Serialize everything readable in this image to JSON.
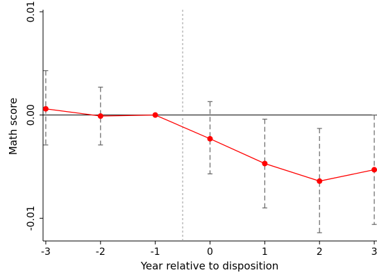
{
  "chart_data": {
    "type": "line",
    "title": "",
    "xlabel": "Year relative to disposition",
    "ylabel": "Math score",
    "x": [
      -3,
      -2,
      -1,
      0,
      1,
      2,
      3
    ],
    "x_tick_labels": [
      "-3",
      "-2",
      "-1",
      "0",
      "1",
      "2",
      "3"
    ],
    "y_ticks": [
      -0.01,
      0.0,
      0.01
    ],
    "y_tick_labels": [
      "-0.01",
      "0.00",
      "0.01"
    ],
    "xlim": [
      -3.05,
      3.05
    ],
    "ylim": [
      -0.0122,
      0.0102
    ],
    "series": [
      {
        "values": [
          0.0006,
          -0.0001,
          0.0,
          -0.0023,
          -0.0047,
          -0.0064,
          -0.0053
        ],
        "ci_low": [
          -0.0029,
          -0.0029,
          null,
          -0.0057,
          -0.009,
          -0.0114,
          -0.0106
        ],
        "ci_high": [
          0.0043,
          0.0027,
          null,
          0.0013,
          -0.0004,
          -0.0013,
          0.0
        ],
        "color": "#ff0000"
      }
    ],
    "reference_lines": {
      "horizontal_y": 0.0,
      "vertical_x": -0.5
    },
    "grid": false,
    "legend": "none",
    "colors": {
      "line": "#ff0000",
      "markers": "#ff0000",
      "error_bars": "#666666",
      "vertical_reference": "#999999",
      "zero_line": "#000000"
    }
  }
}
